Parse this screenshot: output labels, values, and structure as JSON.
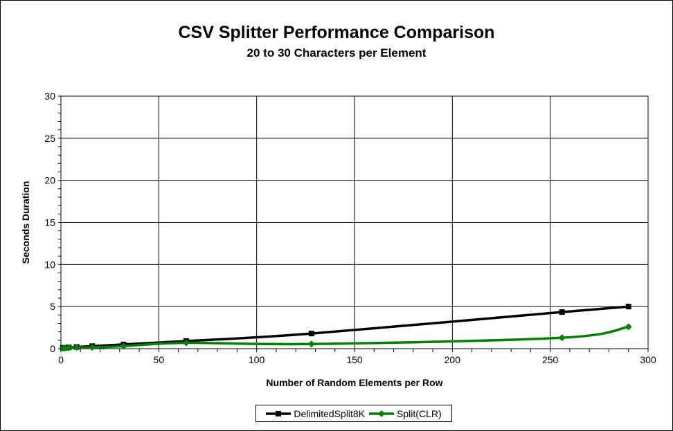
{
  "chart_data": {
    "type": "line",
    "title": "CSV Splitter Performance Comparison",
    "subtitle": "20 to 30 Characters per Element",
    "xlabel": "Number of Random Elements per Row",
    "ylabel": "Seconds Duration",
    "xlim": [
      0,
      300
    ],
    "ylim": [
      0,
      30
    ],
    "xticks": [
      0,
      50,
      100,
      150,
      200,
      250,
      300
    ],
    "yticks": [
      0,
      5,
      10,
      15,
      20,
      25,
      30
    ],
    "grid": true,
    "legend": "bottom",
    "x": [
      1,
      2,
      4,
      8,
      16,
      32,
      64,
      128,
      256,
      290
    ],
    "series": [
      {
        "name": "DelimitedSplit8K",
        "color": "#000000",
        "marker": "square",
        "values": [
          0.1,
          0.1,
          0.15,
          0.2,
          0.3,
          0.5,
          0.9,
          1.8,
          4.35,
          5.0
        ]
      },
      {
        "name": "Split(CLR)",
        "color": "#008000",
        "marker": "diamond",
        "values": [
          0.05,
          0.05,
          0.1,
          0.15,
          0.15,
          0.3,
          0.7,
          0.55,
          1.3,
          2.6
        ]
      }
    ]
  }
}
